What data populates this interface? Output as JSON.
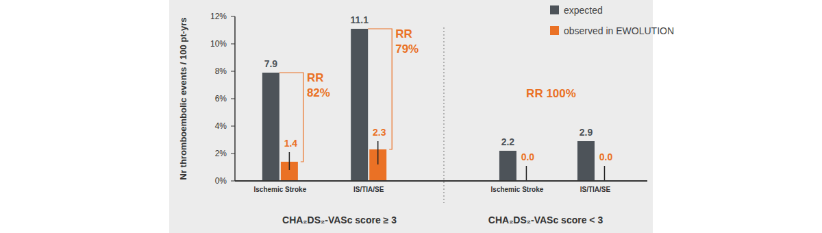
{
  "chart_data": {
    "type": "bar",
    "y_label": "Nr thromboembolic events / 100 pt-yrs",
    "categories": [
      "Ischemic Stroke",
      "IS/TIA/SE",
      "Ischemic Stroke",
      "IS/TIA/SE"
    ],
    "groups": [
      "CHA₂DS₂-VASc score ≥ 3",
      "CHA₂DS₂-VASc score < 3"
    ],
    "series": [
      {
        "name": "expected",
        "color": "#4d5359",
        "values": [
          7.9,
          11.1,
          2.2,
          2.9
        ],
        "value_labels": [
          "7.9",
          "11.1",
          "2.2",
          "2.9"
        ]
      },
      {
        "name": "observed in EWOLUTION",
        "color": "#ea7125",
        "values": [
          1.4,
          2.3,
          0,
          0
        ],
        "value_labels": [
          "1.4",
          "2.3",
          "0.0",
          "0.0"
        ],
        "ci_low": [
          0.8,
          1.2,
          0,
          0
        ],
        "ci_high": [
          2.1,
          2.9,
          1.1,
          1.1
        ]
      }
    ],
    "ylim": [
      0,
      12
    ],
    "yticks": [
      {
        "value": 0,
        "label": "0%"
      },
      {
        "value": 2,
        "label": "2%"
      },
      {
        "value": 4,
        "label": "4%"
      },
      {
        "value": 6,
        "label": "6%"
      },
      {
        "value": 8,
        "label": "8%"
      },
      {
        "value": 10,
        "label": "10%"
      },
      {
        "value": 12,
        "label": "12%"
      }
    ],
    "grid": false,
    "legend": "top-right",
    "data_labels": true,
    "annotations": [
      {
        "text": [
          "RR",
          "82%"
        ],
        "category": 0
      },
      {
        "text": [
          "RR",
          "79%"
        ],
        "category": 1
      },
      {
        "text": [
          "RR 100%"
        ],
        "group": 1
      }
    ]
  }
}
